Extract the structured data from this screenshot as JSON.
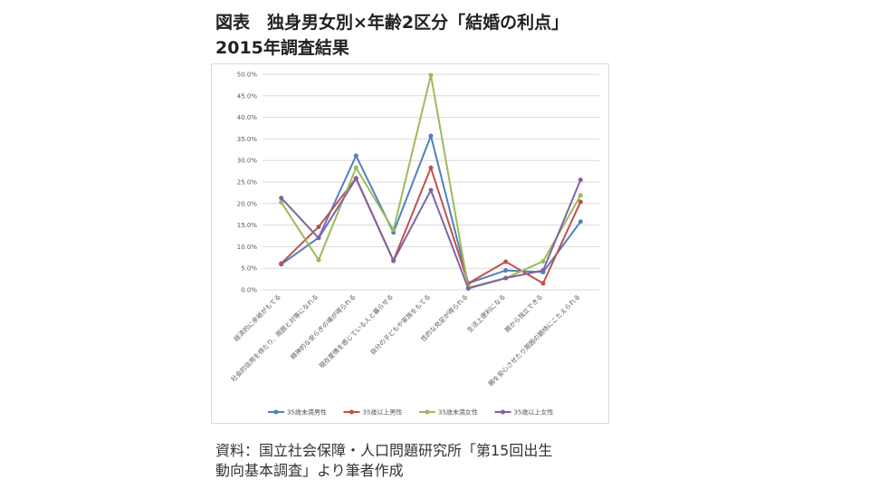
{
  "chart_data": {
    "type": "line",
    "title": [
      "図表　独身男女別×年齢2区分「結婚の利点」",
      "2015年調査結果"
    ],
    "categories": [
      "経済的に余裕がもてる",
      "社会的信用を得たり、周囲と対等になれる",
      "精神的な安らぎの場が得られる",
      "現在愛情を感じている人と暮らせる",
      "自分の子どもや家族をもてる",
      "性的な充足が得られる",
      "生活上便利になる",
      "親から独立できる",
      "親を安心させたり周囲の期待にこたえられる"
    ],
    "series": [
      {
        "name": "35歳未満男性",
        "color": "#4f81bd",
        "values": [
          5.9,
          12.1,
          31.1,
          13.3,
          35.7,
          1.5,
          4.5,
          4.1,
          15.8
        ]
      },
      {
        "name": "35歳以上男性",
        "color": "#c0504d",
        "values": [
          6.1,
          14.6,
          25.9,
          6.8,
          28.3,
          1.5,
          6.5,
          1.5,
          20.4
        ]
      },
      {
        "name": "35歳未満女性",
        "color": "#9bbb59",
        "values": [
          20.3,
          6.9,
          28.3,
          13.9,
          49.8,
          0.5,
          2.7,
          6.6,
          21.9
        ]
      },
      {
        "name": "35歳以上女性",
        "color": "#8064a2",
        "values": [
          21.3,
          12.0,
          25.8,
          6.7,
          23.1,
          0.3,
          2.7,
          4.5,
          25.5
        ]
      }
    ],
    "ylim": [
      0,
      50
    ],
    "yticks": [
      {
        "value": 0,
        "label": "0.0%"
      },
      {
        "value": 5,
        "label": "5.0%"
      },
      {
        "value": 10,
        "label": "10.0%"
      },
      {
        "value": 15,
        "label": "15.0%"
      },
      {
        "value": 20,
        "label": "20.0%"
      },
      {
        "value": 25,
        "label": "25.0%"
      },
      {
        "value": 30,
        "label": "30.0%"
      },
      {
        "value": 35,
        "label": "35.0%"
      },
      {
        "value": 40,
        "label": "40.0%"
      },
      {
        "value": 45,
        "label": "45.0%"
      },
      {
        "value": 50,
        "label": "50.0%"
      }
    ],
    "grid": true,
    "legend": "bottom",
    "source": [
      "資料：国立社会保障・人口問題研究所「第15回出生",
      "動向基本調査」より筆者作成"
    ]
  }
}
